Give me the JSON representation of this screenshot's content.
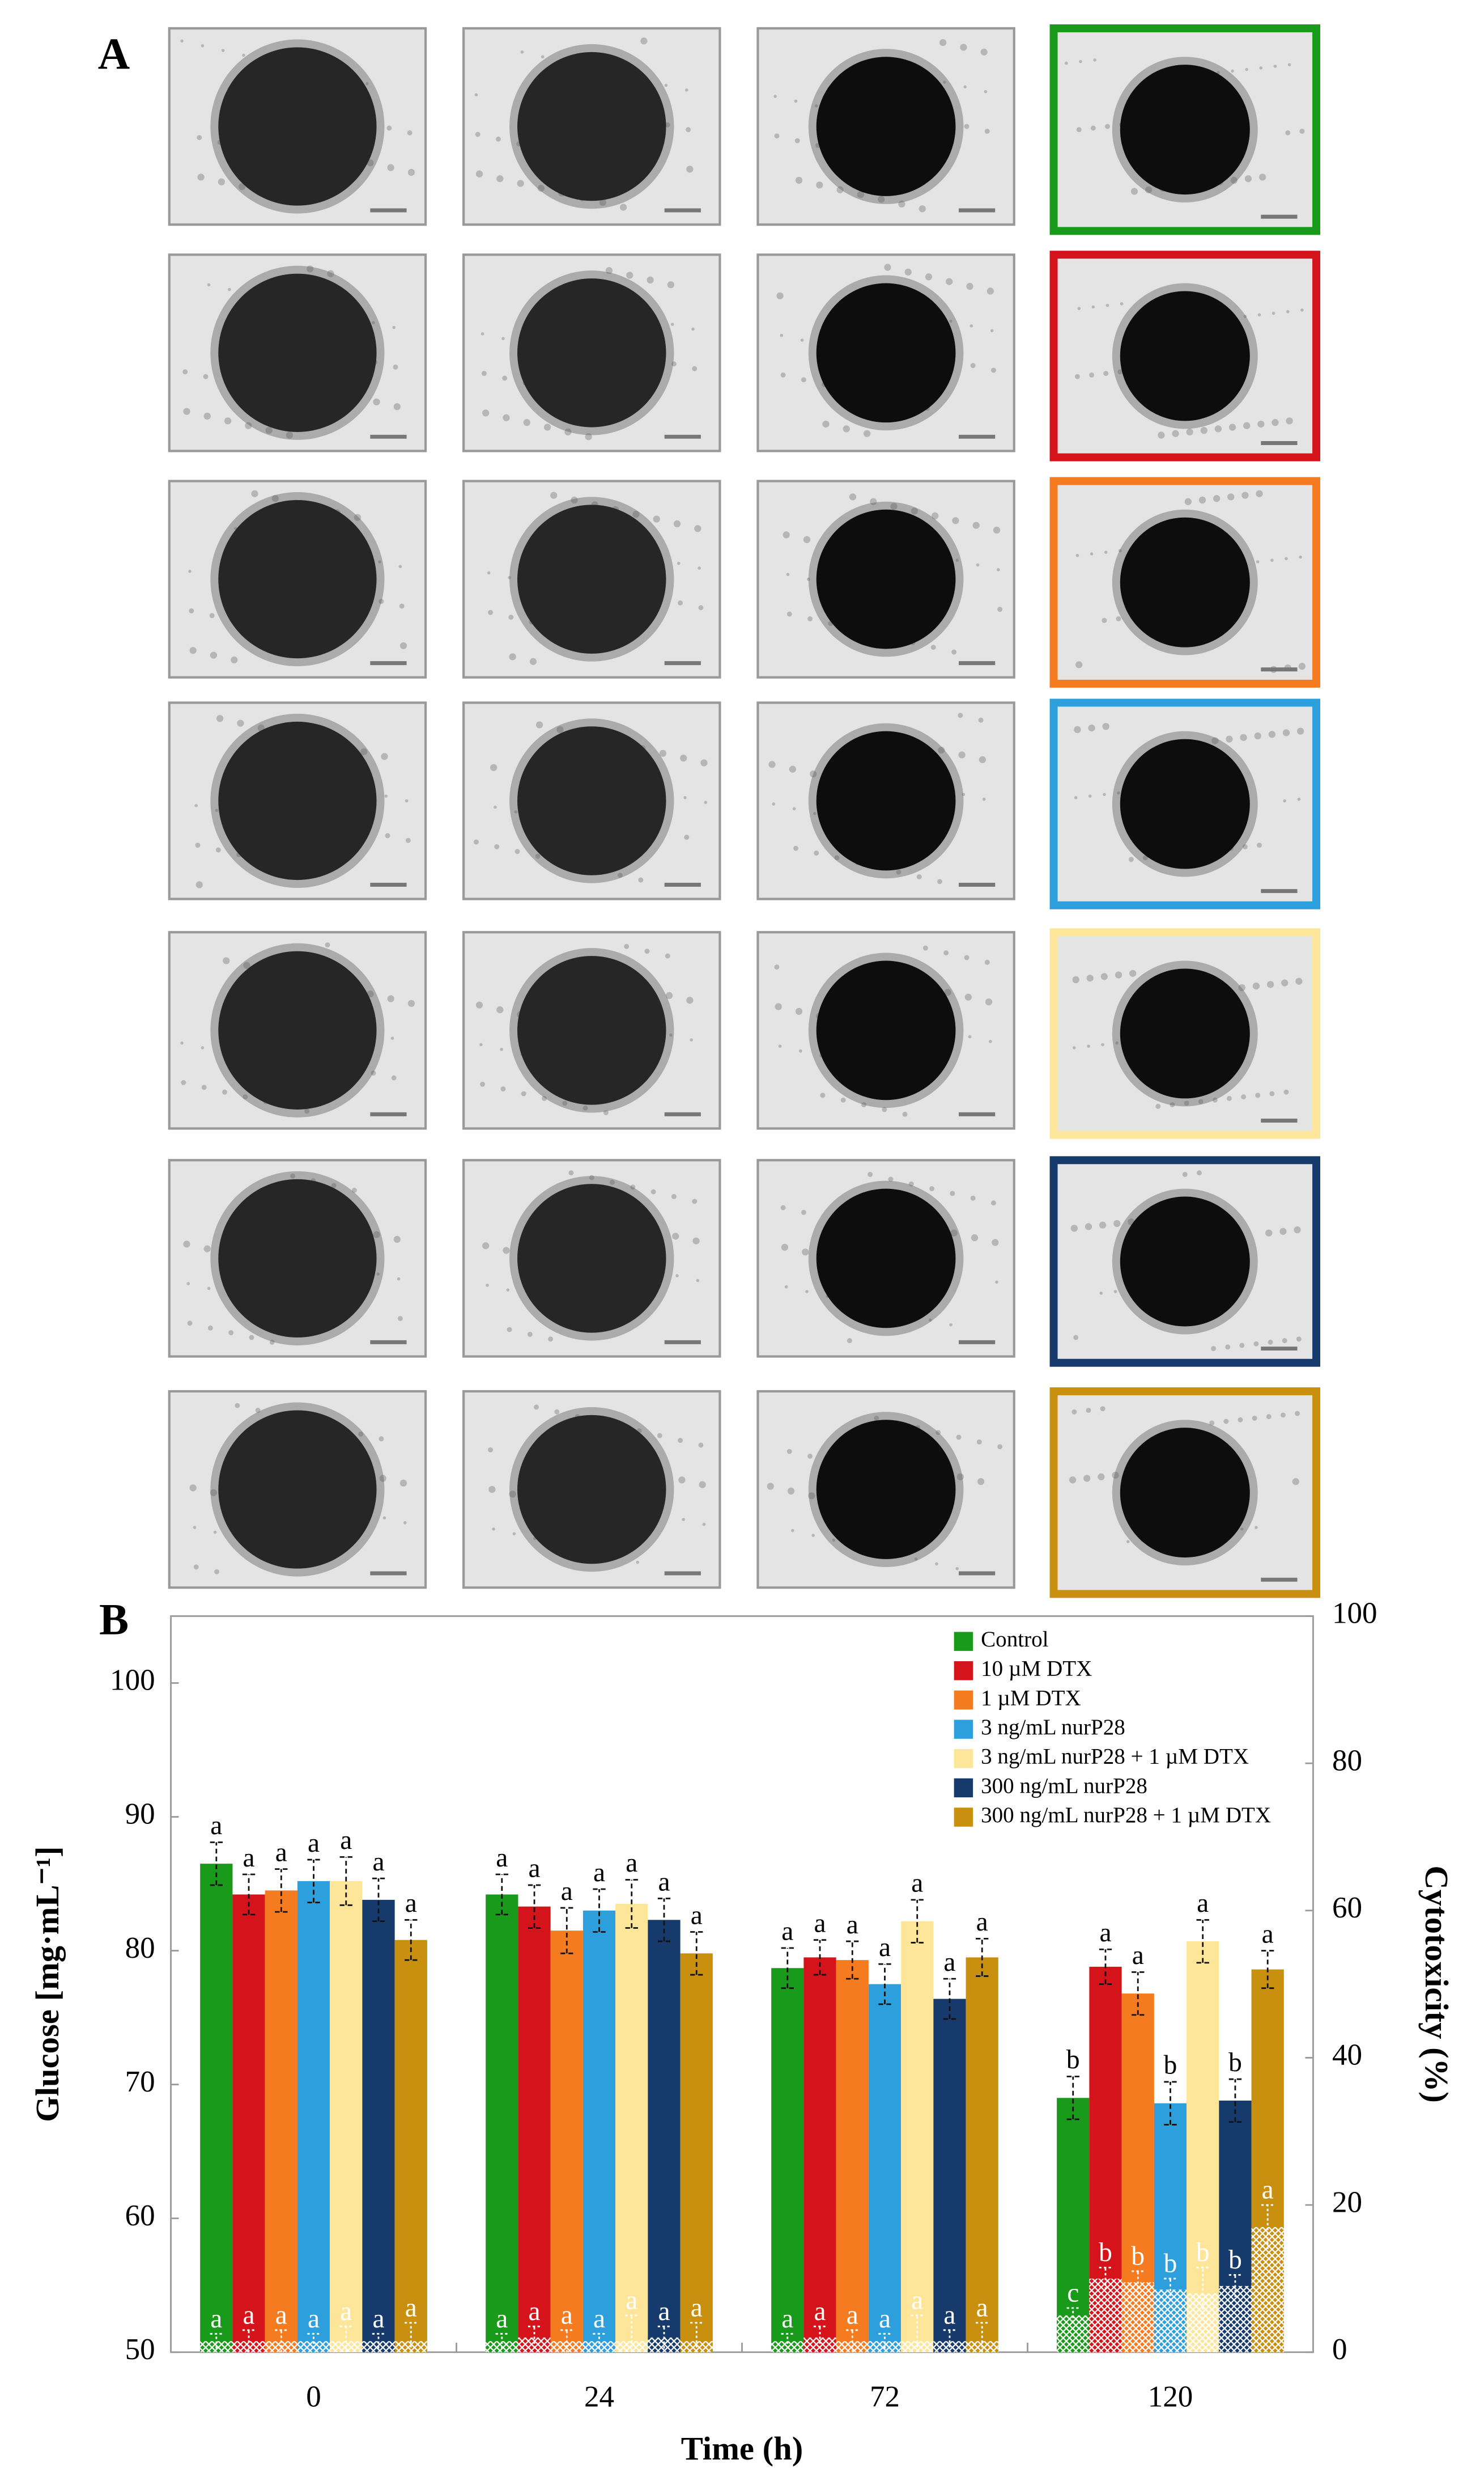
{
  "panel_labels": [
    "A",
    "B"
  ],
  "chart_data": {
    "type": "bar",
    "xlabel": "Time (h)",
    "ylabel": "Glucose [mg·mL⁻¹]",
    "y2label": "Cytotoxicity (%)",
    "categories": [
      "0",
      "24",
      "72",
      "120"
    ],
    "ylim": [
      50,
      105
    ],
    "yticks": [
      50,
      60,
      70,
      80,
      90,
      100
    ],
    "y2lim": [
      0,
      100
    ],
    "y2ticks": [
      0,
      20,
      40,
      60,
      80,
      100
    ],
    "legend": "upper right",
    "series": [
      {
        "name": "Control",
        "color": "#1a9a1a",
        "values": [
          86.5,
          84.2,
          78.7,
          69.0
        ],
        "errors": [
          1.6,
          1.5,
          1.5,
          1.6
        ],
        "labels": [
          "a",
          "a",
          "a",
          "b"
        ],
        "cytotoxicity": {
          "axis": "y2",
          "values": [
            1.5,
            1.5,
            1.5,
            5.0
          ],
          "errors": [
            1.0,
            1.0,
            1.0,
            1.0
          ],
          "labels": [
            "a",
            "a",
            "a",
            "c"
          ]
        }
      },
      {
        "name": "10 µM DTX",
        "color": "#d4131b",
        "values": [
          84.2,
          83.3,
          79.5,
          78.8
        ],
        "errors": [
          1.5,
          1.6,
          1.3,
          1.3
        ],
        "labels": [
          "a",
          "a",
          "a",
          "a"
        ],
        "cytotoxicity": {
          "axis": "y2",
          "values": [
            1.5,
            2.0,
            2.0,
            10.0
          ],
          "errors": [
            1.5,
            1.5,
            1.5,
            1.5
          ],
          "labels": [
            "a",
            "a",
            "a",
            "b"
          ]
        }
      },
      {
        "name": "1 µM DTX",
        "color": "#f57b20",
        "values": [
          84.5,
          81.5,
          79.3,
          76.8
        ],
        "errors": [
          1.6,
          1.7,
          1.4,
          1.6
        ],
        "labels": [
          "a",
          "a",
          "a",
          "a"
        ],
        "cytotoxicity": {
          "axis": "y2",
          "values": [
            1.5,
            1.5,
            1.5,
            9.5
          ],
          "errors": [
            1.5,
            1.5,
            1.5,
            1.5
          ],
          "labels": [
            "a",
            "a",
            "a",
            "b"
          ]
        }
      },
      {
        "name": "3 ng/mL nurP28",
        "color": "#2e9fdd",
        "values": [
          85.2,
          83.0,
          77.5,
          68.6
        ],
        "errors": [
          1.6,
          1.6,
          1.5,
          1.6
        ],
        "labels": [
          "a",
          "a",
          "a",
          "b"
        ],
        "cytotoxicity": {
          "axis": "y2",
          "values": [
            1.5,
            1.5,
            1.5,
            8.5
          ],
          "errors": [
            1.0,
            1.0,
            1.0,
            1.5
          ],
          "labels": [
            "a",
            "a",
            "a",
            "b"
          ]
        }
      },
      {
        "name": "3 ng/mL nurP28 + 1 µM DTX",
        "color": "#fde59a",
        "values": [
          85.2,
          83.5,
          82.2,
          80.7
        ],
        "errors": [
          1.8,
          1.8,
          1.6,
          1.6
        ],
        "labels": [
          "a",
          "a",
          "a",
          "a"
        ],
        "cytotoxicity": {
          "axis": "y2",
          "values": [
            1.5,
            1.5,
            1.5,
            8.0
          ],
          "errors": [
            2.0,
            3.5,
            3.5,
            3.5
          ],
          "labels": [
            "a",
            "a",
            "a",
            "b"
          ]
        }
      },
      {
        "name": "300 ng/mL nurP28",
        "color": "#163a6b",
        "values": [
          83.8,
          82.3,
          76.4,
          68.8
        ],
        "errors": [
          1.6,
          1.6,
          1.5,
          1.6
        ],
        "labels": [
          "a",
          "a",
          "a",
          "b"
        ],
        "cytotoxicity": {
          "axis": "y2",
          "values": [
            1.5,
            2.0,
            1.5,
            9.0
          ],
          "errors": [
            1.0,
            1.5,
            1.5,
            1.5
          ],
          "labels": [
            "a",
            "a",
            "a",
            "b"
          ]
        }
      },
      {
        "name": "300 ng/mL nurP28 + 1 µM DTX",
        "color": "#c9900f",
        "values": [
          80.8,
          79.8,
          79.5,
          78.6
        ],
        "errors": [
          1.5,
          1.6,
          1.4,
          1.4
        ],
        "labels": [
          "a",
          "a",
          "a",
          "a"
        ],
        "cytotoxicity": {
          "axis": "y2",
          "values": [
            1.5,
            1.5,
            1.5,
            17.0
          ],
          "errors": [
            2.5,
            2.5,
            2.5,
            3.0
          ],
          "labels": [
            "a",
            "a",
            "a",
            "a"
          ]
        }
      }
    ]
  }
}
